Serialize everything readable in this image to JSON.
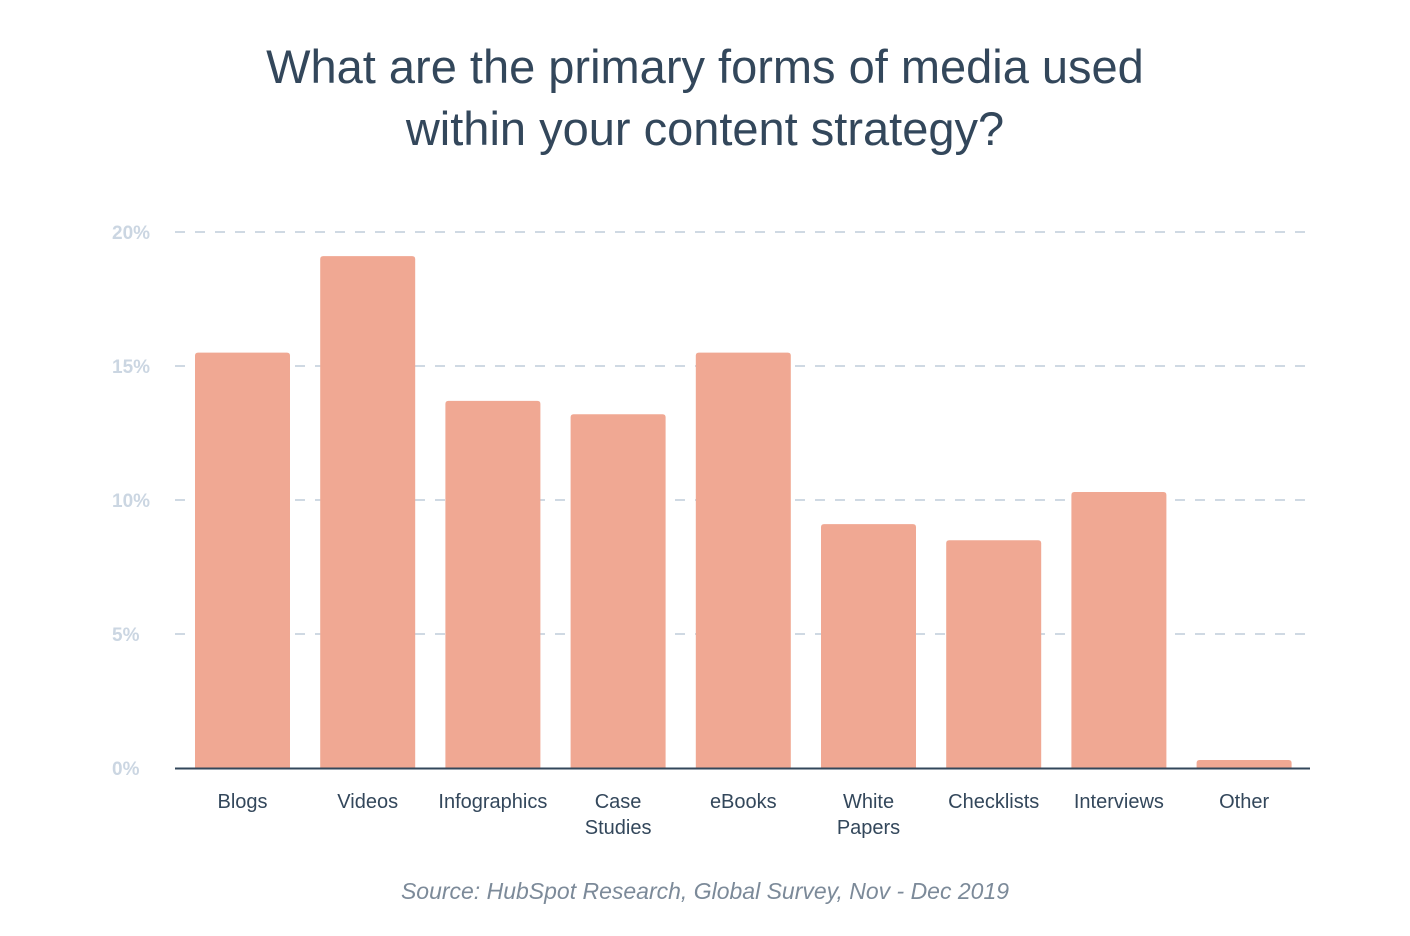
{
  "chart_data": {
    "type": "bar",
    "title_lines": [
      "What are the primary forms of media used",
      "within your content strategy?"
    ],
    "categories": [
      [
        "Blogs"
      ],
      [
        "Videos"
      ],
      [
        "Infographics"
      ],
      [
        "Case",
        "Studies"
      ],
      [
        "eBooks"
      ],
      [
        "White",
        "Papers"
      ],
      [
        "Checklists"
      ],
      [
        "Interviews"
      ],
      [
        "Other"
      ]
    ],
    "values": [
      15.5,
      19.1,
      13.7,
      13.2,
      15.5,
      9.1,
      8.5,
      10.3,
      0.3
    ],
    "ylim": [
      0,
      20
    ],
    "yticks": [
      0,
      5,
      10,
      15,
      20
    ],
    "ytick_labels": [
      "0%",
      "5%",
      "10%",
      "15%",
      "20%"
    ],
    "grid": "dashed horizontal",
    "xlabel": "",
    "ylabel": "",
    "source": "Source: HubSpot Research, Global Survey, Nov - Dec 2019",
    "colors": {
      "bar": "#f0a893",
      "axis": "#33475b",
      "grid": "#cfd9e3",
      "tick_label": "#cbd6e2",
      "title": "#33475b"
    }
  }
}
